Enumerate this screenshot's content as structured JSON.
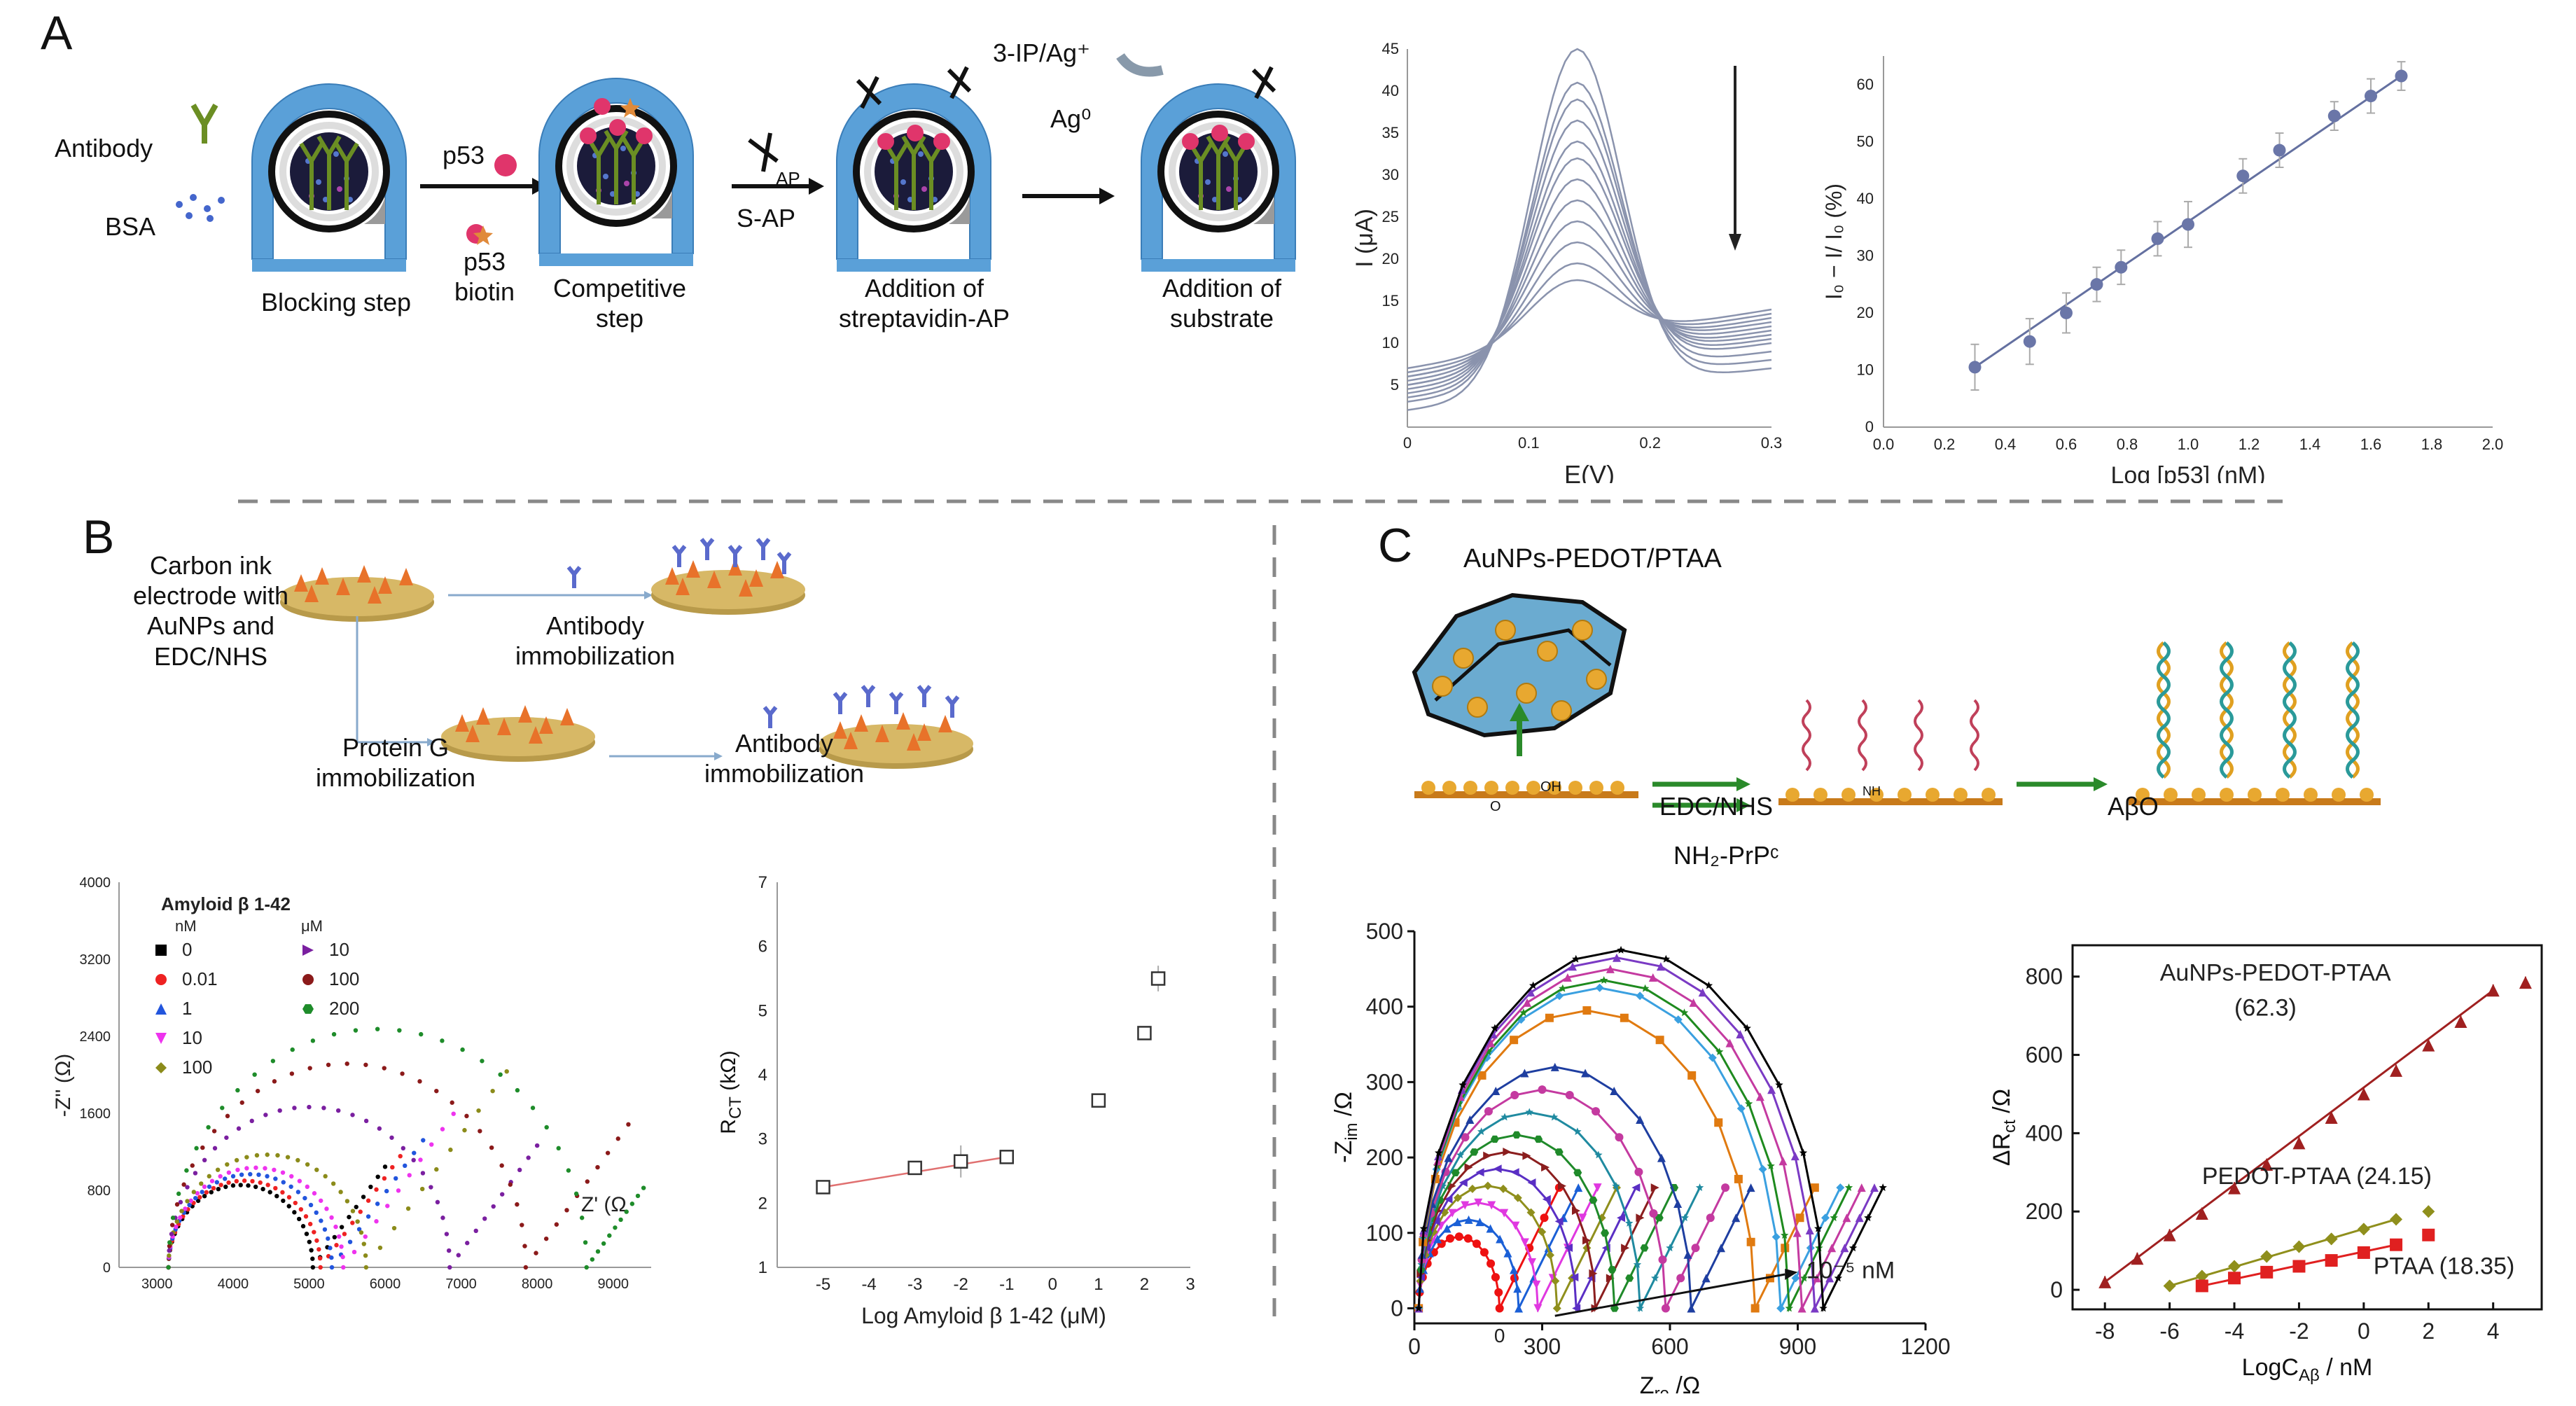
{
  "panels": {
    "a": "A",
    "b": "B",
    "c": "C"
  },
  "panel_a": {
    "legend": {
      "antibody": "Antibody",
      "bsa": "BSA"
    },
    "step_labels": {
      "blocking": "Blocking step",
      "competitive": "Competitive step",
      "streptavidin": "Addition of streptavidin-AP",
      "substrate": "Addition of substrate"
    },
    "arrow_labels": {
      "p53": "p53",
      "p53_biotin": "p53 biotin",
      "ap": "AP",
      "s_ap": "S-AP",
      "ip_ag": "3-IP/Ag⁺",
      "ag0": "Ag⁰"
    }
  },
  "panel_b": {
    "schematic": {
      "electrode": "Carbon ink electrode with AuNPs and EDC/NHS",
      "antibody_immob_top": "Antibody immobilization",
      "protein_g": "Protein G immobilization",
      "antibody_immob_bottom": "Antibody immobilization"
    }
  },
  "panel_c": {
    "title": "AuNPs-PEDOT/PTAA",
    "edc_nhs": "EDC/NHS",
    "nh2_prp": "NH₂-PrPᶜ",
    "abo": "AβO",
    "oh": "OH",
    "o": "O",
    "nh": "NH"
  },
  "chart_data": [
    {
      "id": "dpv",
      "type": "line",
      "xlabel": "E(V)",
      "ylabel": "I (μA)",
      "xlim": [
        0,
        0.3
      ],
      "ylim": [
        0,
        45
      ],
      "xticks": [
        "0",
        "0.1",
        "0.2",
        "0.3"
      ],
      "yticks": [
        "5",
        "10",
        "15",
        "20",
        "25",
        "30",
        "35",
        "40",
        "45"
      ],
      "peak_potential": 0.14,
      "peak_currents": [
        45,
        41,
        39,
        36.5,
        34,
        32,
        29.5,
        27,
        24.5,
        22,
        19.5,
        17.5
      ],
      "start_currents": [
        2,
        3,
        3.5,
        4,
        4.5,
        5,
        5,
        5.5,
        6,
        6,
        6.5,
        7
      ],
      "end_currents": [
        7,
        8,
        9,
        10,
        10.5,
        11,
        11.5,
        12,
        12.5,
        13,
        13.5,
        14
      ]
    },
    {
      "id": "p53-calibration",
      "type": "scatter",
      "xlabel": "Log [p53] (nM)",
      "ylabel": "I₀ − I/ I₀ (%)",
      "xlim": [
        0,
        2.0
      ],
      "ylim": [
        0,
        65
      ],
      "xticks": [
        "0.0",
        "0.2",
        "0.4",
        "0.6",
        "0.8",
        "1.0",
        "1.2",
        "1.4",
        "1.6",
        "1.8",
        "2.0"
      ],
      "yticks": [
        "0",
        "10",
        "20",
        "30",
        "40",
        "50",
        "60"
      ],
      "x": [
        0.3,
        0.48,
        0.6,
        0.7,
        0.78,
        0.9,
        1.0,
        1.18,
        1.3,
        1.48,
        1.6,
        1.7
      ],
      "y": [
        10.5,
        15,
        20,
        25,
        28,
        33,
        35.5,
        44,
        48.5,
        54.5,
        58,
        61.5
      ],
      "err": [
        4,
        4,
        3.5,
        3,
        3,
        3,
        4,
        3,
        3,
        2.5,
        3,
        2.5
      ],
      "fit": {
        "x": [
          0.3,
          1.7
        ],
        "y": [
          10.5,
          61.5
        ]
      }
    },
    {
      "id": "nyquist-amyloid",
      "type": "scatter",
      "xlabel": "Z' (Ω",
      "ylabel": "-Z'' (Ω)",
      "xlim": [
        2500,
        9500
      ],
      "ylim": [
        0,
        4000
      ],
      "xticks": [
        "3000",
        "4000",
        "5000",
        "6000",
        "7000",
        "8000",
        "9000"
      ],
      "yticks": [
        "0",
        "800",
        "1600",
        "2400",
        "3200",
        "4000"
      ],
      "legend_title": "Amyloid β 1-42",
      "unit_nm": "nM",
      "unit_um": "μM",
      "series": [
        {
          "name": "0",
          "unit": "nM",
          "color": "#000000",
          "marker": "square",
          "rct": 1900,
          "max_x": 6000
        },
        {
          "name": "0.01",
          "unit": "nM",
          "color": "#ee2222",
          "marker": "circle",
          "rct": 2000,
          "max_x": 6200
        },
        {
          "name": "1",
          "unit": "nM",
          "color": "#2255dd",
          "marker": "triangle",
          "rct": 2150,
          "max_x": 6500
        },
        {
          "name": "10",
          "unit": "nM",
          "color": "#ee33ee",
          "marker": "triangle-down",
          "rct": 2300,
          "max_x": 6900
        },
        {
          "name": "100",
          "unit": "nM",
          "color": "#8b8b1a",
          "marker": "diamond",
          "rct": 2600,
          "max_x": 7600
        },
        {
          "name": "10",
          "unit": "μM",
          "color": "#7a1fa0",
          "marker": "triangle-right",
          "rct": 3700,
          "max_x": 8000
        },
        {
          "name": "100",
          "unit": "μM",
          "color": "#8b1a1a",
          "marker": "circle",
          "rct": 4700,
          "max_x": 9200
        },
        {
          "name": "200",
          "unit": "μM",
          "color": "#1e8c2a",
          "marker": "hexagon",
          "rct": 5500,
          "max_x": 9400
        }
      ]
    },
    {
      "id": "rct-calibration",
      "type": "scatter",
      "xlabel": "Log Amyloid β 1-42 (μM)",
      "ylabel": "R_CT (kΩ)",
      "ylabel_main": "R",
      "ylabel_sub": "CT",
      "ylabel_unit": " (kΩ)",
      "xlim": [
        -6,
        3
      ],
      "ylim": [
        1,
        7
      ],
      "xticks": [
        "-5",
        "-4",
        "-3",
        "-2",
        "-1",
        "0",
        "1",
        "2",
        "3"
      ],
      "yticks": [
        "1",
        "2",
        "3",
        "4",
        "5",
        "6",
        "7"
      ],
      "x": [
        -5,
        -3,
        -2,
        -1,
        1,
        2,
        2.3
      ],
      "y": [
        2.25,
        2.55,
        2.65,
        2.72,
        3.6,
        4.65,
        5.5
      ],
      "err": [
        0.05,
        0.1,
        0.25,
        0.1,
        0.1,
        0.1,
        0.2
      ],
      "fit": {
        "x": [
          -5,
          -1
        ],
        "y": [
          2.25,
          2.72
        ]
      }
    },
    {
      "id": "nyquist-abo",
      "type": "scatter",
      "xlabel": "Z_re /Ω",
      "ylabel": "-Z_im /Ω",
      "xlabel_main": "Z",
      "xlabel_sub": "re",
      "xlabel_unit": " /Ω",
      "ylabel_main": "-Z",
      "ylabel_sub": "im",
      "ylabel_unit": " /Ω",
      "xlim": [
        0,
        1200
      ],
      "ylim": [
        -20,
        500
      ],
      "xticks": [
        "0",
        "300",
        "600",
        "900",
        "1200"
      ],
      "yticks": [
        "0",
        "100",
        "200",
        "300",
        "400",
        "500"
      ],
      "annotation_low": "0",
      "annotation_high": "10⁻⁵ nM",
      "series": [
        {
          "color": "#ee1111",
          "rct": 200,
          "marker": "circle"
        },
        {
          "color": "#1a5fd6",
          "rct": 245,
          "marker": "triangle"
        },
        {
          "color": "#e038e0",
          "rct": 290,
          "marker": "triangle-down"
        },
        {
          "color": "#8f8f1c",
          "rct": 335,
          "marker": "diamond"
        },
        {
          "color": "#5a2fc4",
          "rct": 380,
          "marker": "triangle-left"
        },
        {
          "color": "#8b1e1e",
          "rct": 425,
          "marker": "triangle-right"
        },
        {
          "color": "#1f8a2a",
          "rct": 470,
          "marker": "hexagon"
        },
        {
          "color": "#1f8aa0",
          "rct": 530,
          "marker": "star"
        },
        {
          "color": "#c43aa0",
          "rct": 590,
          "marker": "circle"
        },
        {
          "color": "#1e3ea0",
          "rct": 650,
          "marker": "triangle"
        },
        {
          "color": "#e07a10",
          "rct": 800,
          "marker": "square"
        },
        {
          "color": "#3aa0e0",
          "rct": 860,
          "marker": "diamond"
        },
        {
          "color": "#1e8a1e",
          "rct": 880,
          "marker": "star"
        },
        {
          "color": "#c43aa0",
          "rct": 910,
          "marker": "triangle"
        },
        {
          "color": "#7a3ac4",
          "rct": 940,
          "marker": "triangle"
        },
        {
          "color": "#000000",
          "rct": 960,
          "marker": "star"
        }
      ]
    },
    {
      "id": "drct-calibration",
      "type": "scatter",
      "xlabel": "LogC_Aβ / nM",
      "ylabel": "ΔR_ct /Ω",
      "xlabel_main": "LogC",
      "xlabel_sub": "Aβ",
      "xlabel_unit": " / nM",
      "ylabel_main": "ΔR",
      "ylabel_sub": "ct",
      "ylabel_unit": " /Ω",
      "xlim": [
        -9,
        5.5
      ],
      "ylim": [
        -50,
        880
      ],
      "xticks": [
        "-8",
        "-6",
        "-4",
        "-2",
        "0",
        "2",
        "4"
      ],
      "yticks": [
        "0",
        "200",
        "400",
        "600",
        "800"
      ],
      "series": [
        {
          "name": "AuNPs-PEDOT-PTAA",
          "slope_label": "(62.3)",
          "color": "#a02020",
          "marker": "triangle",
          "x": [
            -8,
            -7,
            -6,
            -5,
            -4,
            -3,
            -2,
            -1,
            0,
            1,
            2,
            3,
            4,
            5
          ],
          "y": [
            20,
            80,
            140,
            195,
            260,
            320,
            375,
            440,
            500,
            560,
            625,
            685,
            765,
            785
          ],
          "fit": {
            "x": [
              -8,
              4
            ],
            "y": [
              20,
              765
            ]
          }
        },
        {
          "name": "PEDOT-PTAA (24.15)",
          "color": "#8f8f1c",
          "marker": "diamond",
          "x": [
            -6,
            -5,
            -4,
            -3,
            -2,
            -1,
            0,
            1,
            2
          ],
          "y": [
            10,
            35,
            60,
            85,
            110,
            130,
            155,
            180,
            200
          ],
          "fit": {
            "x": [
              -6,
              1
            ],
            "y": [
              10,
              180
            ]
          }
        },
        {
          "name": "PTAA (18.35)",
          "color": "#e02020",
          "marker": "square",
          "x": [
            -5,
            -4,
            -3,
            -2,
            -1,
            0,
            1,
            2
          ],
          "y": [
            10,
            30,
            45,
            60,
            75,
            95,
            115,
            140
          ],
          "fit": {
            "x": [
              -5,
              1
            ],
            "y": [
              10,
              115
            ]
          }
        }
      ]
    }
  ]
}
